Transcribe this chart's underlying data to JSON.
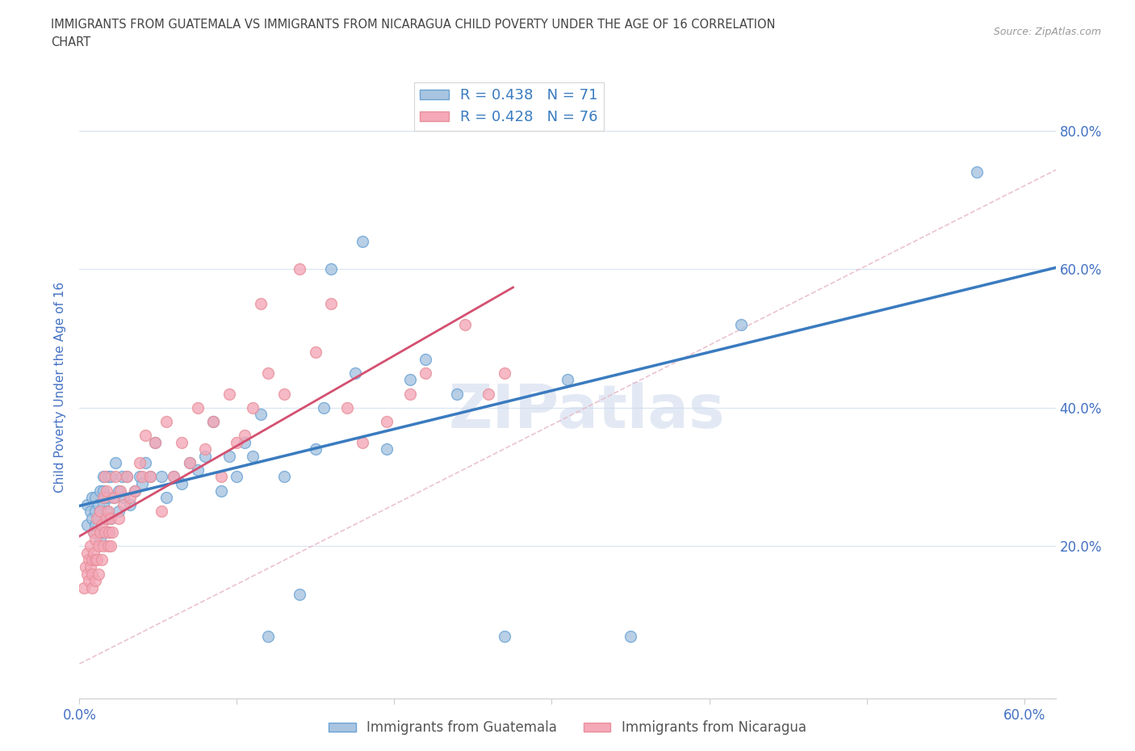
{
  "title_line1": "IMMIGRANTS FROM GUATEMALA VS IMMIGRANTS FROM NICARAGUA CHILD POVERTY UNDER THE AGE OF 16 CORRELATION",
  "title_line2": "CHART",
  "source_text": "Source: ZipAtlas.com",
  "ylabel": "Child Poverty Under the Age of 16",
  "xlim": [
    0.0,
    0.62
  ],
  "ylim": [
    -0.02,
    0.88
  ],
  "xtick_positions": [
    0.0,
    0.1,
    0.2,
    0.3,
    0.4,
    0.5,
    0.6
  ],
  "xticklabels": [
    "0.0%",
    "",
    "",
    "",
    "",
    "",
    "60.0%"
  ],
  "ytick_positions": [
    0.2,
    0.4,
    0.6,
    0.8
  ],
  "ytick_labels": [
    "20.0%",
    "40.0%",
    "60.0%",
    "80.0%"
  ],
  "r_guatemala": 0.438,
  "n_guatemala": 71,
  "r_nicaragua": 0.428,
  "n_nicaragua": 76,
  "color_guatemala": "#a8c4e0",
  "color_nicaragua": "#f4a8b8",
  "edge_color_guatemala": "#6aa3d5",
  "edge_color_nicaragua": "#e8909a",
  "trend_color_guatemala": "#3a7bbf",
  "trend_color_nicaragua": "#d45070",
  "diag_color": "#e8b8c8",
  "watermark": "ZIPatlas",
  "guatemala_x": [
    0.005,
    0.005,
    0.007,
    0.008,
    0.008,
    0.009,
    0.01,
    0.01,
    0.01,
    0.012,
    0.012,
    0.013,
    0.013,
    0.013,
    0.014,
    0.015,
    0.015,
    0.015,
    0.016,
    0.016,
    0.017,
    0.018,
    0.018,
    0.019,
    0.02,
    0.02,
    0.022,
    0.023,
    0.025,
    0.025,
    0.027,
    0.028,
    0.03,
    0.032,
    0.035,
    0.038,
    0.04,
    0.042,
    0.045,
    0.048,
    0.052,
    0.055,
    0.06,
    0.065,
    0.07,
    0.075,
    0.08,
    0.085,
    0.09,
    0.095,
    0.1,
    0.105,
    0.11,
    0.115,
    0.12,
    0.13,
    0.14,
    0.15,
    0.155,
    0.16,
    0.175,
    0.18,
    0.195,
    0.21,
    0.22,
    0.24,
    0.27,
    0.31,
    0.35,
    0.42,
    0.57
  ],
  "guatemala_y": [
    0.23,
    0.26,
    0.25,
    0.24,
    0.27,
    0.22,
    0.25,
    0.27,
    0.23,
    0.24,
    0.26,
    0.28,
    0.21,
    0.25,
    0.22,
    0.26,
    0.28,
    0.3,
    0.24,
    0.27,
    0.25,
    0.3,
    0.27,
    0.22,
    0.24,
    0.3,
    0.27,
    0.32,
    0.25,
    0.28,
    0.3,
    0.27,
    0.3,
    0.26,
    0.28,
    0.3,
    0.29,
    0.32,
    0.3,
    0.35,
    0.3,
    0.27,
    0.3,
    0.29,
    0.32,
    0.31,
    0.33,
    0.38,
    0.28,
    0.33,
    0.3,
    0.35,
    0.33,
    0.39,
    0.07,
    0.3,
    0.13,
    0.34,
    0.4,
    0.6,
    0.45,
    0.64,
    0.34,
    0.44,
    0.47,
    0.42,
    0.07,
    0.44,
    0.07,
    0.52,
    0.74
  ],
  "nicaragua_x": [
    0.003,
    0.004,
    0.005,
    0.005,
    0.006,
    0.006,
    0.007,
    0.007,
    0.008,
    0.008,
    0.008,
    0.009,
    0.009,
    0.01,
    0.01,
    0.01,
    0.011,
    0.011,
    0.012,
    0.012,
    0.013,
    0.013,
    0.014,
    0.014,
    0.015,
    0.015,
    0.016,
    0.016,
    0.017,
    0.017,
    0.018,
    0.018,
    0.019,
    0.02,
    0.02,
    0.021,
    0.022,
    0.023,
    0.025,
    0.026,
    0.028,
    0.03,
    0.032,
    0.035,
    0.038,
    0.04,
    0.042,
    0.045,
    0.048,
    0.052,
    0.055,
    0.06,
    0.065,
    0.07,
    0.075,
    0.08,
    0.085,
    0.09,
    0.095,
    0.1,
    0.105,
    0.11,
    0.115,
    0.12,
    0.13,
    0.14,
    0.15,
    0.16,
    0.17,
    0.18,
    0.195,
    0.21,
    0.22,
    0.245,
    0.26,
    0.27
  ],
  "nicaragua_y": [
    0.14,
    0.17,
    0.16,
    0.19,
    0.18,
    0.15,
    0.17,
    0.2,
    0.14,
    0.18,
    0.16,
    0.19,
    0.22,
    0.15,
    0.18,
    0.21,
    0.18,
    0.24,
    0.16,
    0.2,
    0.22,
    0.25,
    0.18,
    0.23,
    0.2,
    0.27,
    0.22,
    0.3,
    0.24,
    0.28,
    0.2,
    0.25,
    0.22,
    0.2,
    0.24,
    0.22,
    0.27,
    0.3,
    0.24,
    0.28,
    0.26,
    0.3,
    0.27,
    0.28,
    0.32,
    0.3,
    0.36,
    0.3,
    0.35,
    0.25,
    0.38,
    0.3,
    0.35,
    0.32,
    0.4,
    0.34,
    0.38,
    0.3,
    0.42,
    0.35,
    0.36,
    0.4,
    0.55,
    0.45,
    0.42,
    0.6,
    0.48,
    0.55,
    0.4,
    0.35,
    0.38,
    0.42,
    0.45,
    0.52,
    0.42,
    0.45
  ],
  "background_color": "#ffffff",
  "grid_color": "#d8e4f0",
  "title_color": "#444444",
  "axis_label_color": "#4472c4",
  "tick_color": "#4472c4"
}
